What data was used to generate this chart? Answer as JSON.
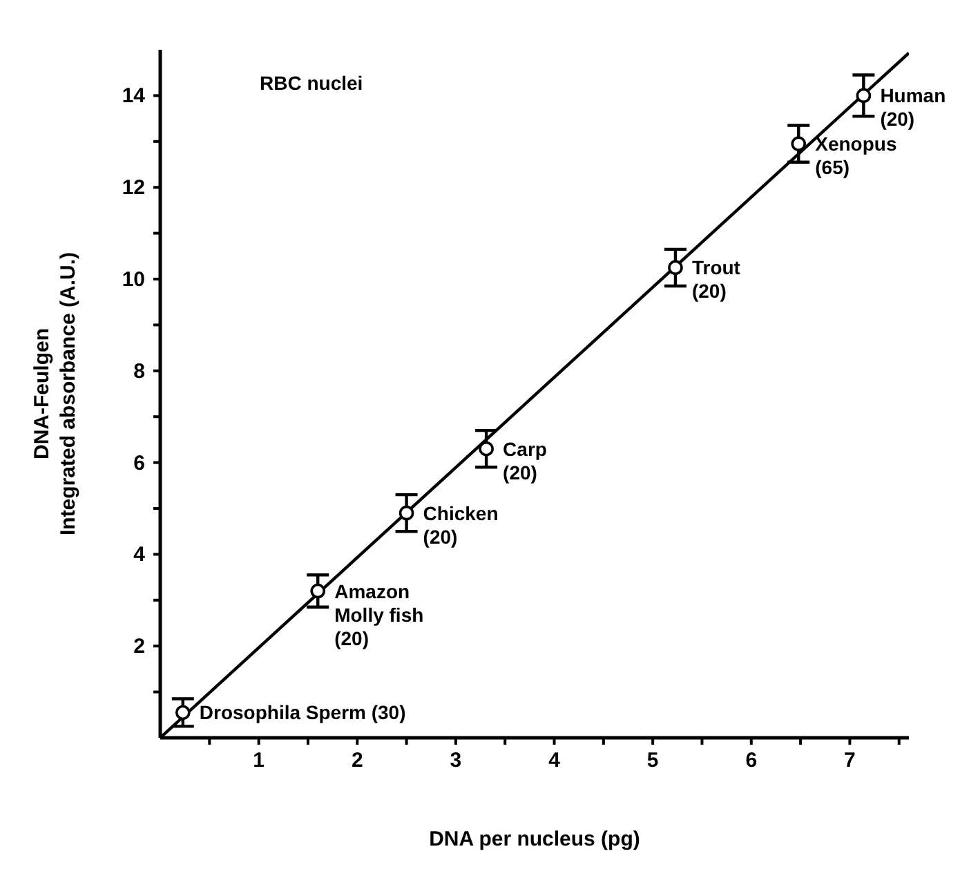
{
  "chart_data": {
    "type": "scatter",
    "xlabel": "DNA per nucleus (pg)",
    "ylabel": "DNA-Feulgen\nIntegrated absorbance (A.U.)",
    "xlim": [
      0,
      7.6
    ],
    "ylim": [
      0,
      15
    ],
    "xticks": [
      {
        "value": 0.5,
        "label": null
      },
      1,
      {
        "value": 1.5,
        "label": null
      },
      2,
      {
        "value": 2.5,
        "label": null
      },
      3,
      {
        "value": 3.5,
        "label": null
      },
      4,
      {
        "value": 4.5,
        "label": null
      },
      5,
      {
        "value": 5.5,
        "label": null
      },
      6,
      {
        "value": 6.5,
        "label": null
      },
      7,
      {
        "value": 7.5,
        "label": null
      }
    ],
    "yticks": [
      {
        "value": 1,
        "label": null
      },
      2,
      {
        "value": 3,
        "label": null
      },
      4,
      {
        "value": 5,
        "label": null
      },
      6,
      {
        "value": 7,
        "label": null
      },
      8,
      {
        "value": 9,
        "label": null
      },
      10,
      {
        "value": 11,
        "label": null
      },
      12,
      {
        "value": 13,
        "label": null
      },
      14
    ],
    "marker": "circle",
    "grid": false,
    "legend": false,
    "series": [
      {
        "color": "#000000",
        "x": [
          0.23,
          1.6,
          2.5,
          3.31,
          5.23,
          6.48,
          7.14
        ],
        "values": [
          0.55,
          3.2,
          4.9,
          6.3,
          10.25,
          12.95,
          14.0
        ],
        "errors": [
          0.3,
          0.35,
          0.4,
          0.4,
          0.4,
          0.4,
          0.45
        ]
      },
      {
        "type": "line",
        "color": "#000000",
        "x": [
          0,
          7.6
        ],
        "values": [
          0,
          14.93
        ],
        "marker": "none",
        "line_style": "solid"
      }
    ],
    "annotations": [
      "RBC nuclei",
      {
        "text": "Drosophila Sperm (30)",
        "x": 0.23,
        "y": 0.55
      },
      {
        "text": "Amazon\nMolly fish\n(20)",
        "x": 1.6,
        "y": 3.2
      },
      {
        "text": "Chicken\n(20)",
        "x": 2.5,
        "y": 4.9
      },
      {
        "text": "Carp\n(20)",
        "x": 3.31,
        "y": 6.3
      },
      {
        "text": "Trout\n(20)",
        "x": 5.23,
        "y": 10.25
      },
      {
        "text": "Xenopus\n(65)",
        "x": 6.48,
        "y": 12.95
      },
      {
        "text": "Human\n(20)",
        "x": 7.14,
        "y": 14.0
      }
    ]
  }
}
